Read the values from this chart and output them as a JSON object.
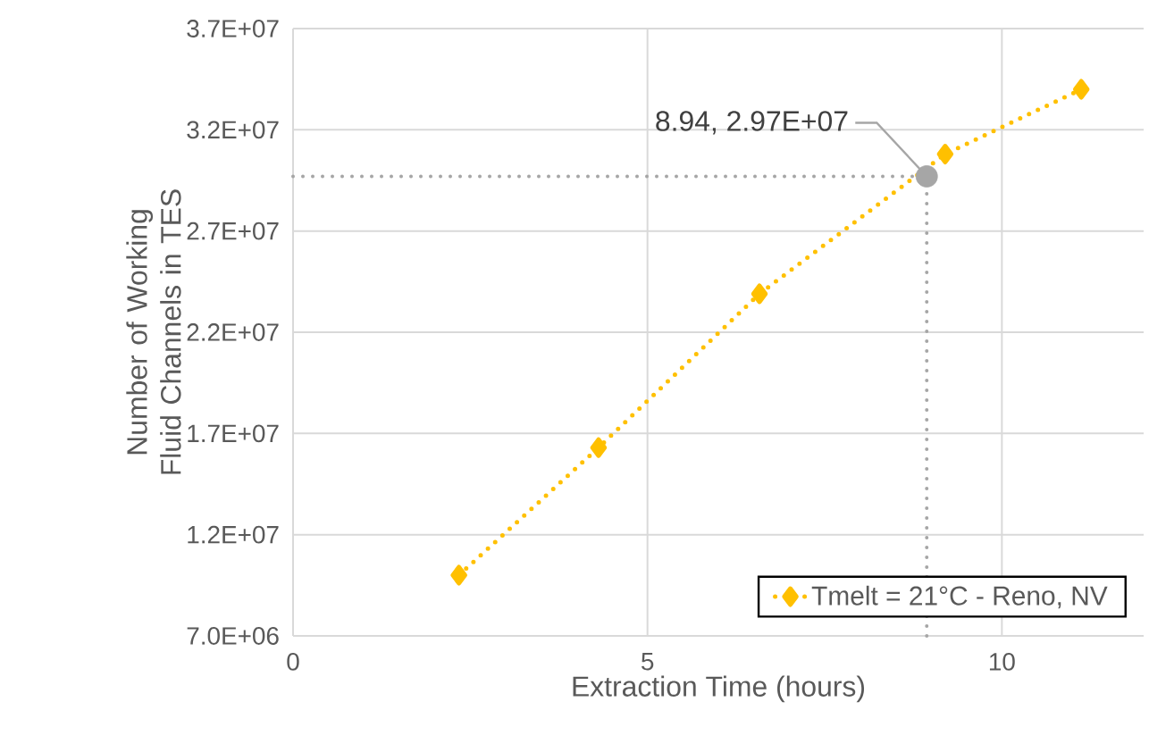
{
  "chart_data": {
    "type": "line",
    "xlabel": "Extraction Time (hours)",
    "ylabel": "Number of Working Fluid Channels in TES",
    "x": [
      2.34,
      4.31,
      6.58,
      9.2,
      11.12
    ],
    "series": [
      {
        "name": "Tmelt = 21°C - Reno, NV",
        "color": "#ffc000",
        "marker": "diamond",
        "line_style": "dotted",
        "values": [
          10000000.0,
          16300000.0,
          23900000.0,
          30800000.0,
          34000000.0
        ]
      },
      {
        "type": "scatter",
        "color": "#a6a6a6",
        "marker": "circle",
        "x": [
          8.94
        ],
        "values": [
          29700000.0
        ]
      }
    ],
    "annotations": [
      {
        "text": "8.94, 2.97E+07",
        "x": 8.94,
        "y": 29700000.0
      }
    ],
    "ref_lines": [
      {
        "axis": "y",
        "value": 29700000.0,
        "color": "#a6a6a6",
        "line_style": "dotted"
      },
      {
        "axis": "x",
        "value": 8.94,
        "color": "#a6a6a6",
        "line_style": "dotted"
      }
    ],
    "xlim": [
      0,
      12
    ],
    "ylim": [
      7000000,
      37000000
    ],
    "xticks": [
      0,
      5,
      10
    ],
    "yticks": [
      {
        "value": 7000000,
        "label": "7.0E+06"
      },
      {
        "value": 12000000,
        "label": "1.2E+07"
      },
      {
        "value": 17000000,
        "label": "1.7E+07"
      },
      {
        "value": 22000000,
        "label": "2.2E+07"
      },
      {
        "value": 27000000,
        "label": "2.7E+07"
      },
      {
        "value": 32000000,
        "label": "3.2E+07"
      },
      {
        "value": 37000000,
        "label": "3.7E+07"
      }
    ],
    "grid": true,
    "legend": "bottom right"
  }
}
